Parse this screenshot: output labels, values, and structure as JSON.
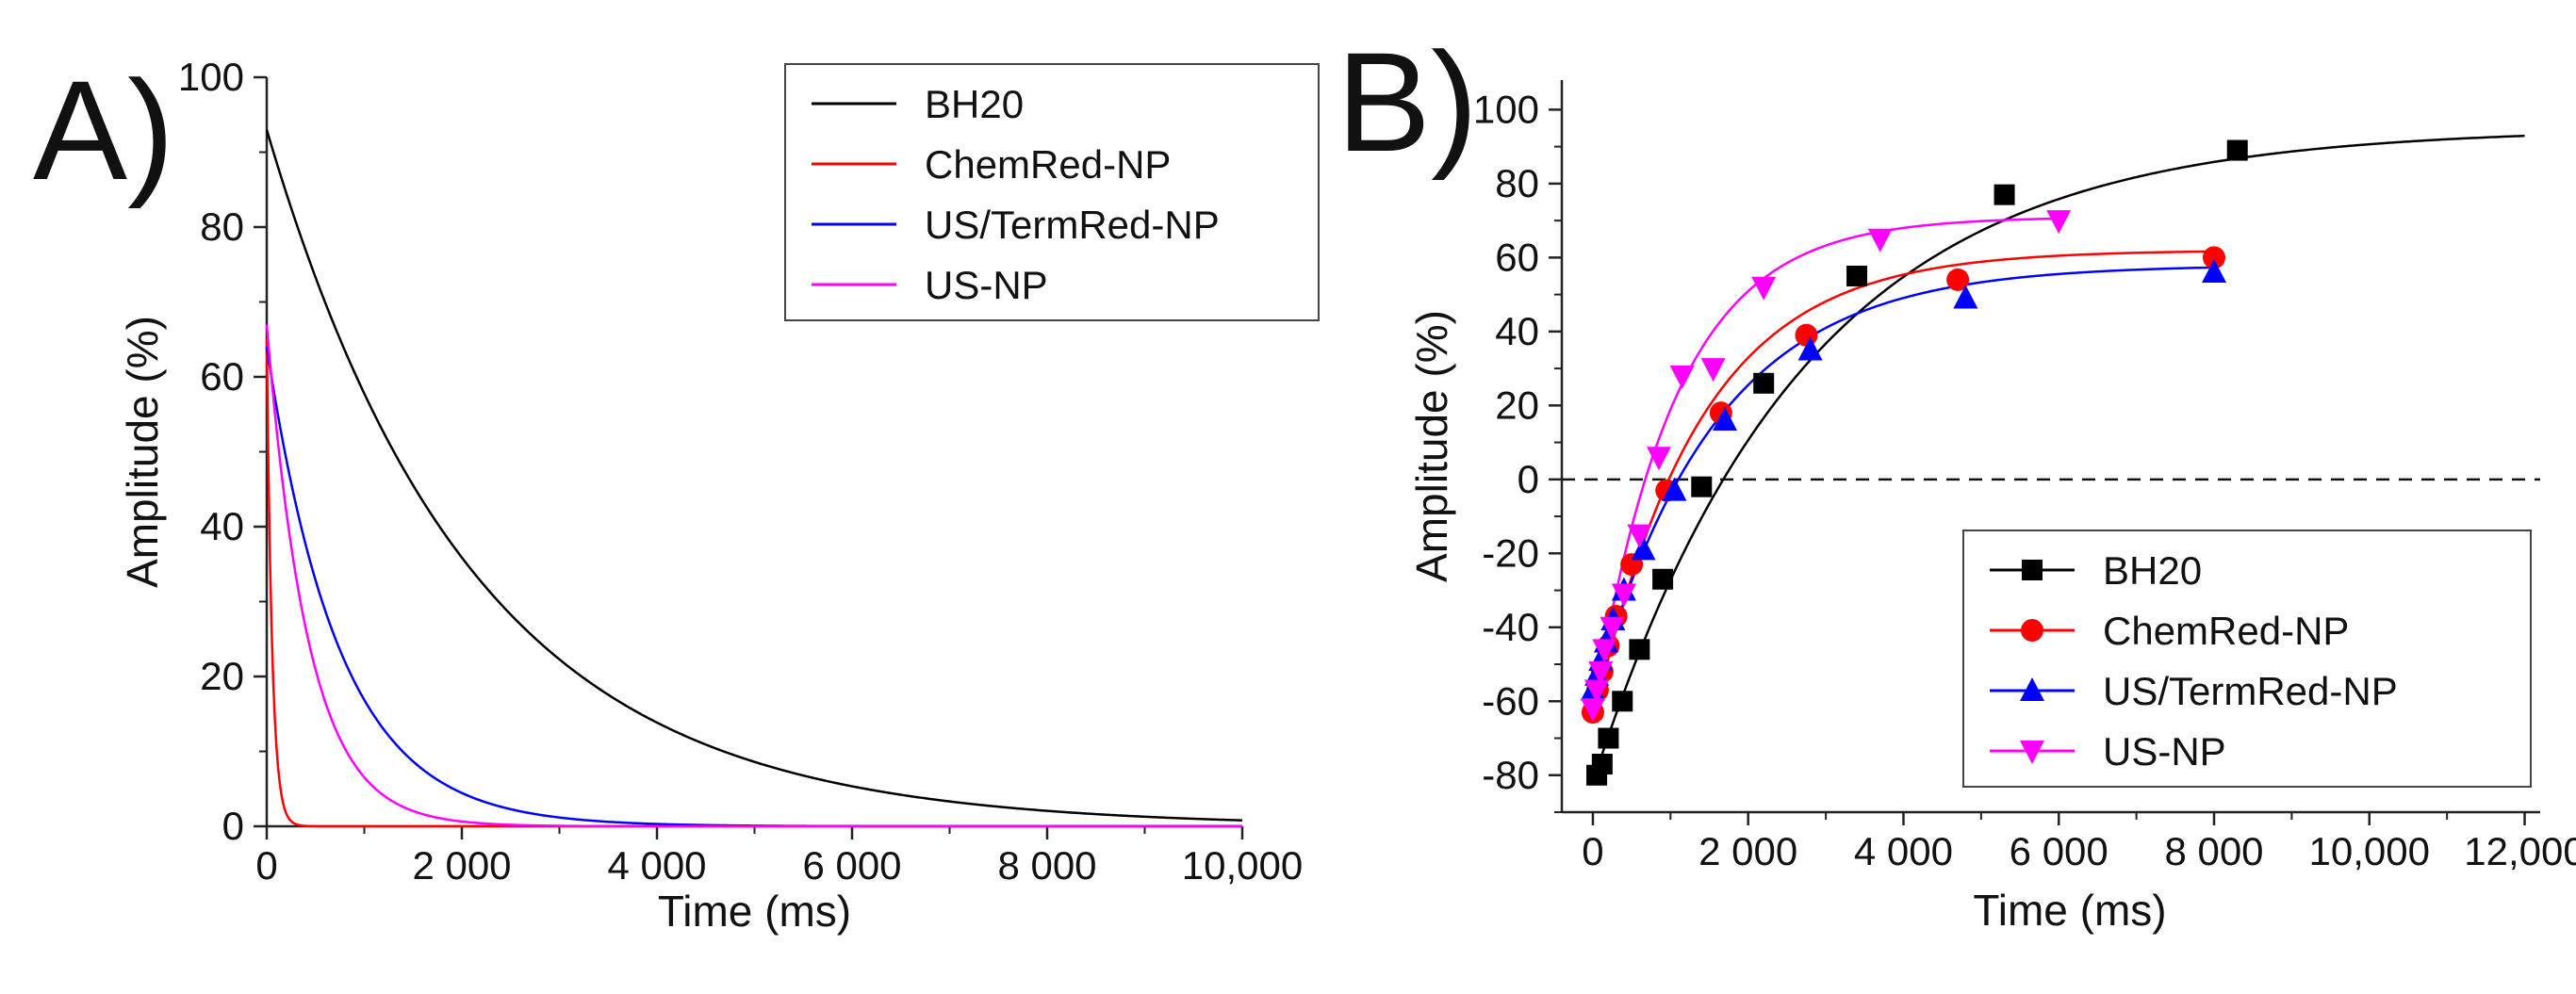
{
  "chart_data": [
    {
      "panel": "A)",
      "type": "line",
      "xlabel": "Time (ms)",
      "ylabel": "Amplitude (%)",
      "xlim": [
        0,
        10000
      ],
      "ylim": [
        0,
        100
      ],
      "xticks": [
        0,
        2000,
        4000,
        6000,
        8000,
        10000
      ],
      "xtick_labels": [
        "0",
        "2 000",
        "4 000",
        "6 000",
        "8 000",
        "10,000"
      ],
      "yticks": [
        0,
        20,
        40,
        60,
        80,
        100
      ],
      "ytick_labels": [
        "0",
        "20",
        "40",
        "60",
        "80",
        "100"
      ],
      "legend": "top-right",
      "series": [
        {
          "name": "BH20",
          "color": "#000000",
          "A0": 93,
          "tau_ms": 2100
        },
        {
          "name": "ChemRed-NP",
          "color": "#ff0000",
          "A0": 65,
          "tau_ms": 55
        },
        {
          "name": "US/TermRed-NP",
          "color": "#0000ff",
          "A0": 64,
          "tau_ms": 750
        },
        {
          "name": "US-NP",
          "color": "#ff00ff",
          "A0": 67,
          "tau_ms": 430
        }
      ]
    },
    {
      "panel": "B)",
      "type": "scatter",
      "xlabel": "Time (ms)",
      "ylabel": "Amplitude (%)",
      "xlim": [
        -400,
        12200
      ],
      "ylim": [
        -90,
        108
      ],
      "xticks": [
        0,
        2000,
        4000,
        6000,
        8000,
        10000,
        12000
      ],
      "xtick_labels": [
        "0",
        "2 000",
        "4 000",
        "6 000",
        "8 000",
        "10,000",
        "12,000"
      ],
      "yticks": [
        -80,
        -60,
        -40,
        -20,
        0,
        20,
        40,
        60,
        80,
        100
      ],
      "ytick_labels": [
        "-80",
        "-60",
        "-40",
        "-20",
        "0",
        "20",
        "40",
        "60",
        "80",
        "100"
      ],
      "reference_line_y": 0,
      "legend": "bottom-right",
      "series": [
        {
          "name": "BH20",
          "color": "#000000",
          "marker": "square",
          "x": [
            50,
            120,
            200,
            380,
            600,
            900,
            1400,
            2200,
            3400,
            5300,
            8300
          ],
          "y": [
            -80,
            -77,
            -70,
            -60,
            -46,
            -27,
            -2,
            26,
            55,
            77,
            89
          ],
          "fit": {
            "ymax": 95,
            "ymin": -82,
            "tau_ms": 2700,
            "x_end": 12000
          }
        },
        {
          "name": "ChemRed-NP",
          "color": "#ff0000",
          "marker": "circle",
          "x": [
            0,
            60,
            120,
            200,
            300,
            500,
            950,
            1650,
            2750,
            4700,
            8000
          ],
          "y": [
            -63,
            -57,
            -52,
            -45,
            -37,
            -23,
            -3,
            18,
            39,
            54,
            60
          ],
          "fit": {
            "ymax": 62,
            "ymin": -66,
            "tau_ms": 1350,
            "x_end": 8000
          }
        },
        {
          "name": "US/TermRed-NP",
          "color": "#0000ff",
          "marker": "triangle-up",
          "x": [
            0,
            50,
            100,
            170,
            260,
            400,
            650,
            1050,
            1700,
            2800,
            4800,
            8000
          ],
          "y": [
            -57,
            -53,
            -49,
            -44,
            -38,
            -30,
            -19,
            -3,
            16,
            35,
            49,
            56
          ],
          "fit": {
            "ymax": 58,
            "ymin": -60,
            "tau_ms": 1550,
            "x_end": 8000
          }
        },
        {
          "name": "US-NP",
          "color": "#ff00ff",
          "marker": "triangle-down",
          "x": [
            0,
            50,
            100,
            150,
            250,
            400,
            600,
            850,
            1150,
            1550,
            2200,
            3700,
            6000
          ],
          "y": [
            -62,
            -57,
            -52,
            -46,
            -40,
            -31,
            -15,
            6,
            28,
            30,
            52,
            65,
            70
          ],
          "fit": {
            "ymax": 71,
            "ymin": -64,
            "tau_ms": 1050,
            "x_end": 6000
          }
        }
      ]
    }
  ]
}
